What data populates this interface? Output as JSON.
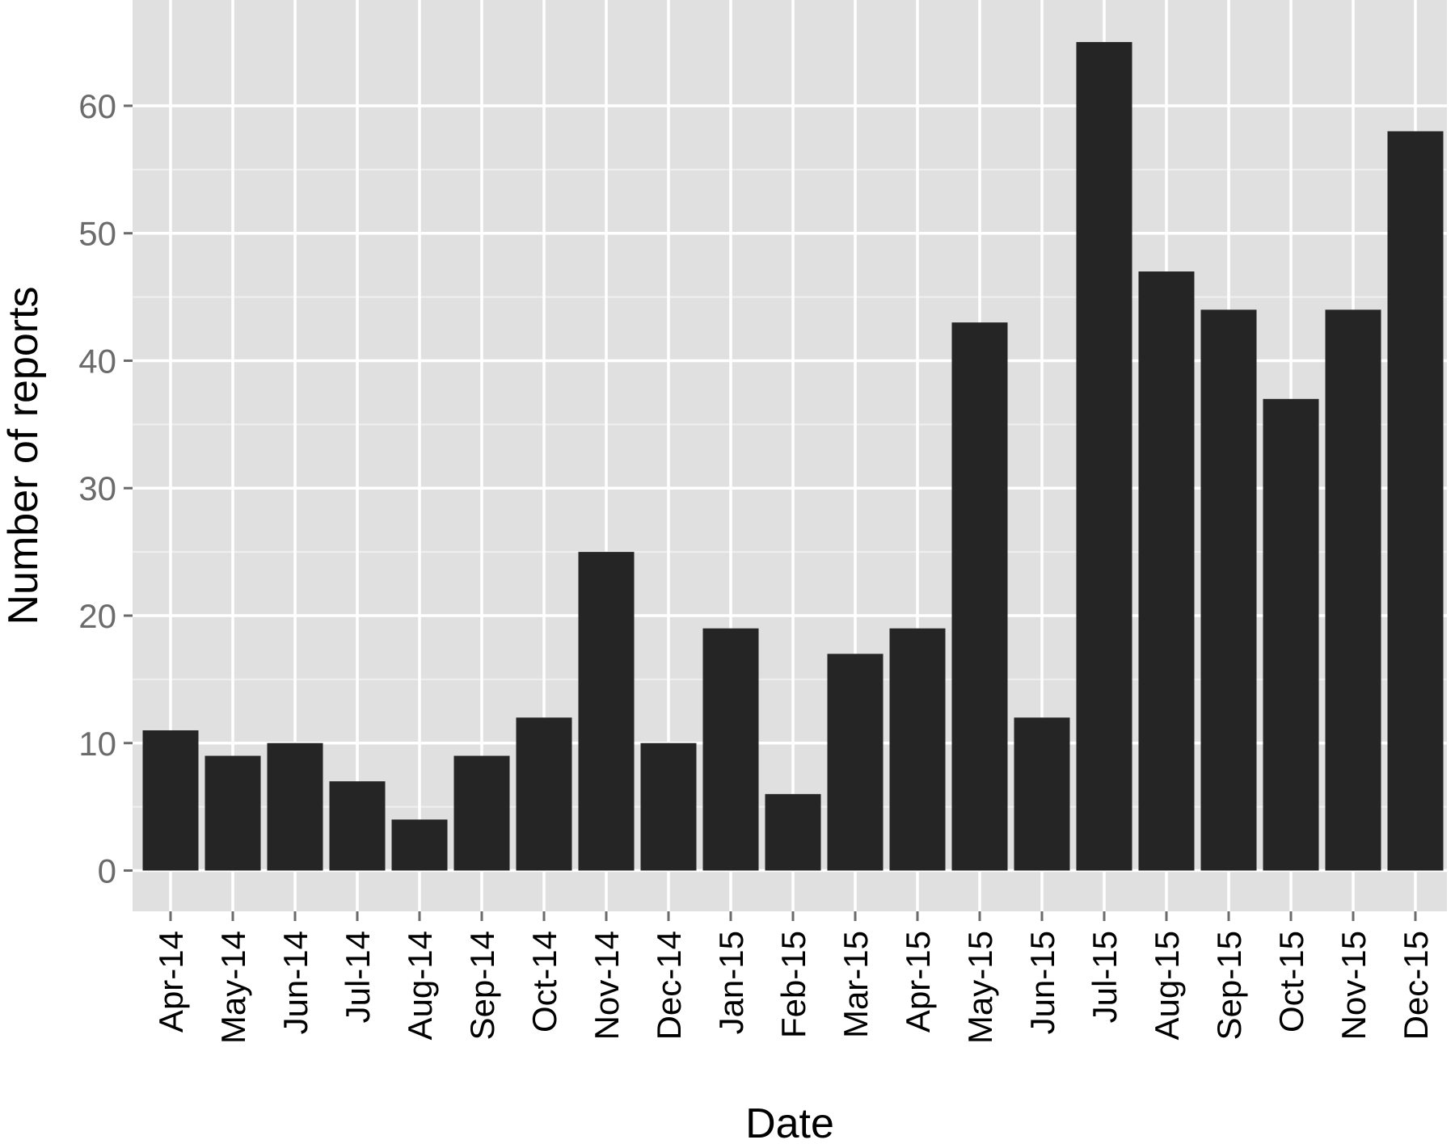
{
  "chart_data": {
    "type": "bar",
    "title": "",
    "xlabel": "Date",
    "ylabel": "Number of reports",
    "categories": [
      "Apr-14",
      "May-14",
      "Jun-14",
      "Jul-14",
      "Aug-14",
      "Sep-14",
      "Oct-14",
      "Nov-14",
      "Dec-14",
      "Jan-15",
      "Feb-15",
      "Mar-15",
      "Apr-15",
      "May-15",
      "Jun-15",
      "Jul-15",
      "Aug-15",
      "Sep-15",
      "Oct-15",
      "Nov-15",
      "Dec-15"
    ],
    "values": [
      11,
      9,
      10,
      7,
      4,
      9,
      12,
      25,
      10,
      19,
      6,
      17,
      19,
      43,
      12,
      65,
      47,
      44,
      37,
      44,
      58
    ],
    "ylim": [
      -3.2,
      68.3
    ],
    "yticks": [
      0,
      10,
      20,
      30,
      40,
      50,
      60
    ],
    "grid": true,
    "legend": "none",
    "colors": {
      "bar": "#252525",
      "panel": "#e0e0e0",
      "grid_major": "#ffffff",
      "grid_minor": "#efefef",
      "tick_label": "#6b6b6b",
      "axis_title": "#000000"
    }
  }
}
